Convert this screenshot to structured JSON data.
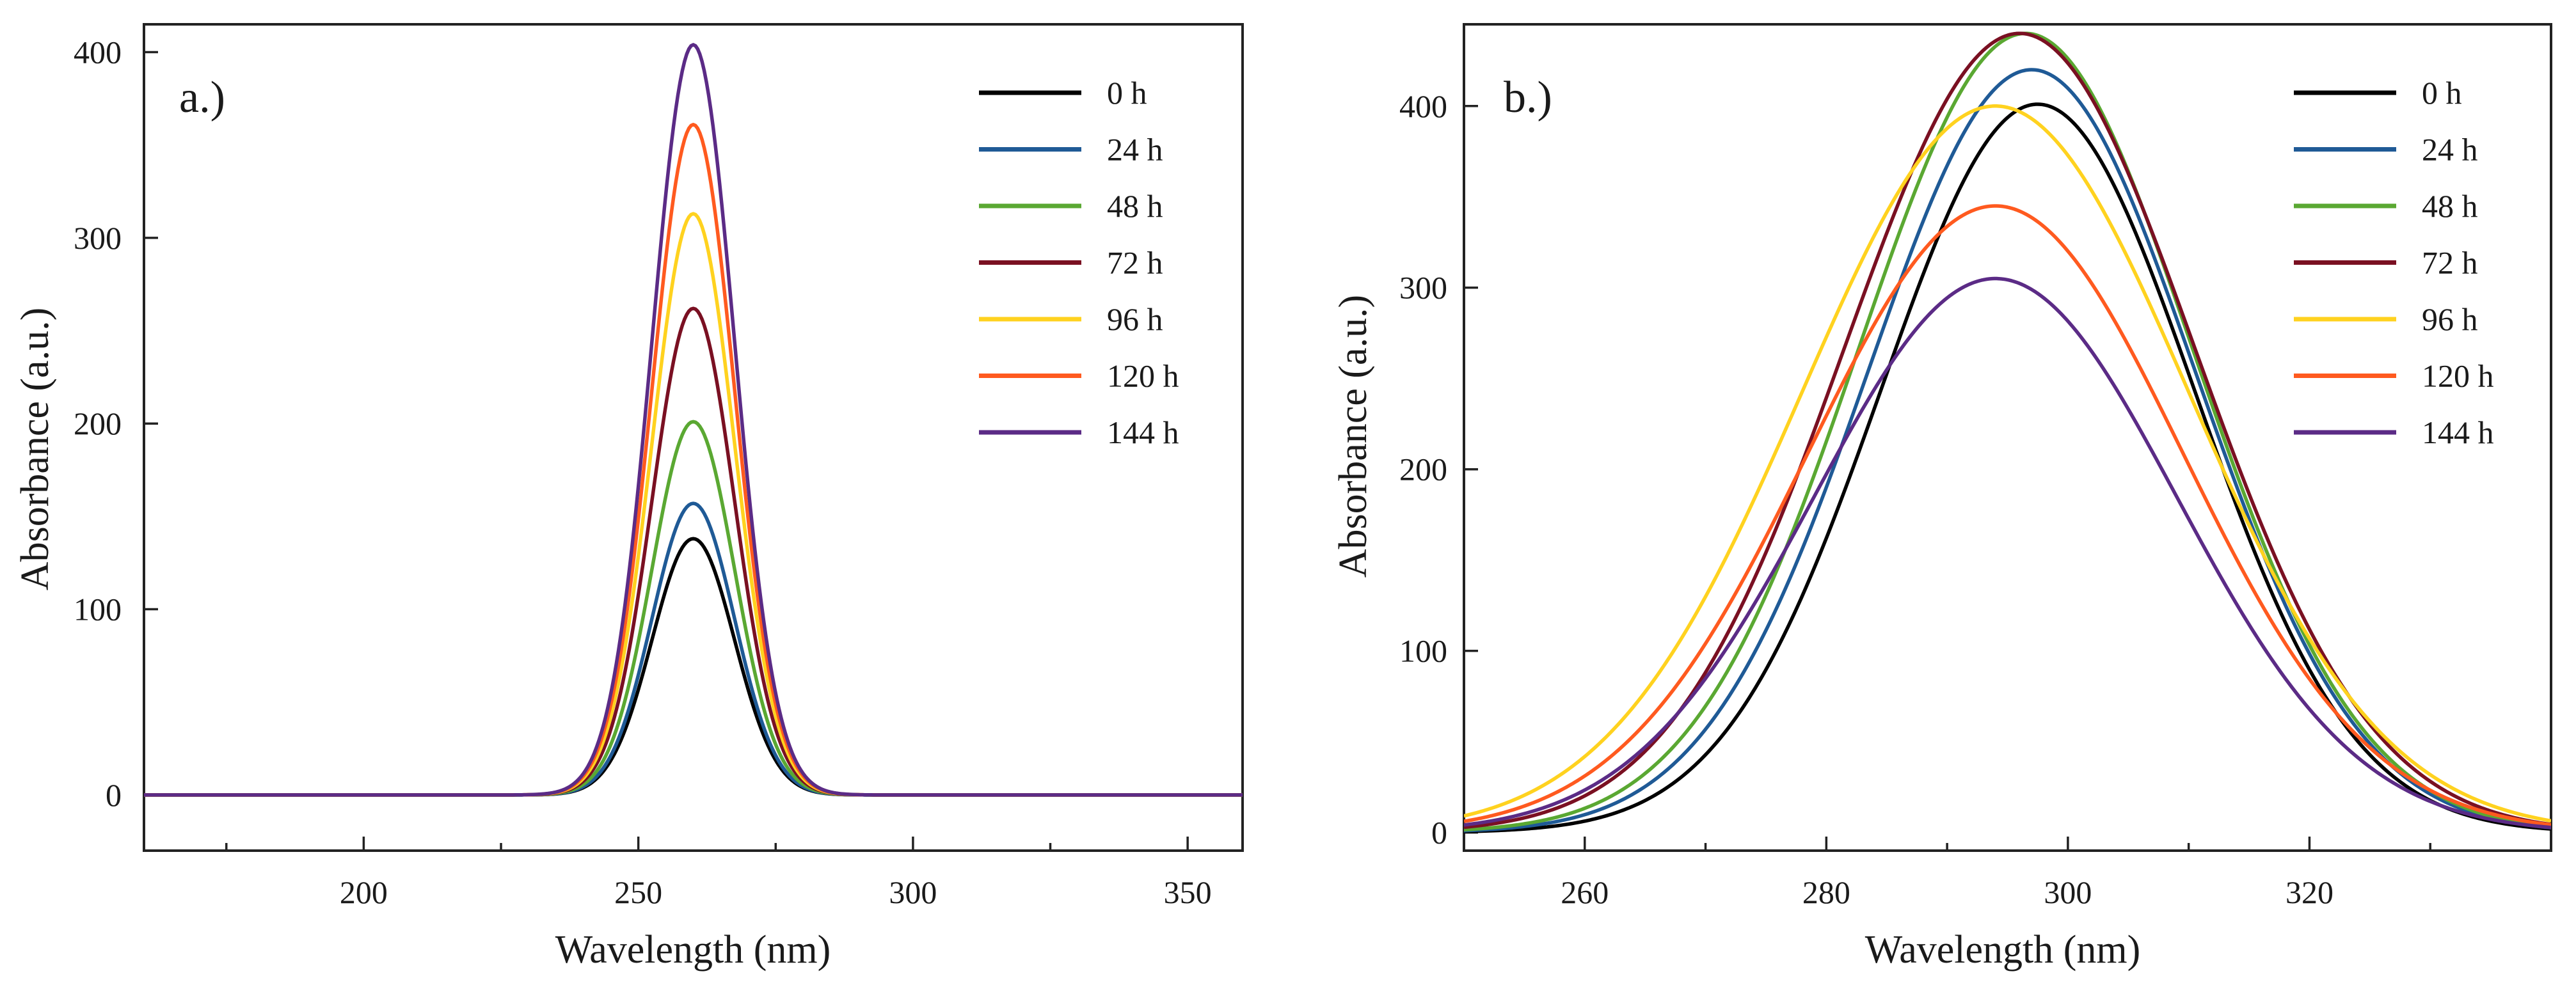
{
  "chart_data": [
    {
      "type": "line",
      "panel_label": "a.)",
      "xlabel": "Wavelength (nm)",
      "ylabel": "Absorbance (a.u.)",
      "xlim": [
        160,
        360
      ],
      "ylim": [
        -30,
        415
      ],
      "xticks": [
        200,
        250,
        300,
        350
      ],
      "xtick_labels": [
        "200",
        "250",
        "300",
        "350"
      ],
      "yticks": [
        0,
        100,
        200,
        300,
        400
      ],
      "ytick_labels": [
        "0",
        "100",
        "200",
        "300",
        "400"
      ],
      "legend_position": "top-right",
      "curve_shape": "gaussian",
      "series": [
        {
          "name": "0 h",
          "color": "#000000",
          "peak_x": 260,
          "peak_y": 138,
          "sigma": 7.5
        },
        {
          "name": "24 h",
          "color": "#1f5a96",
          "peak_x": 260,
          "peak_y": 157,
          "sigma": 7.5
        },
        {
          "name": "48 h",
          "color": "#5aa832",
          "peak_x": 260,
          "peak_y": 201,
          "sigma": 7.5
        },
        {
          "name": "72 h",
          "color": "#7a1022",
          "peak_x": 260,
          "peak_y": 262,
          "sigma": 7.5
        },
        {
          "name": "96 h",
          "color": "#ffd21f",
          "peak_x": 260,
          "peak_y": 313,
          "sigma": 7.5
        },
        {
          "name": "120 h",
          "color": "#ff5a1f",
          "peak_x": 260,
          "peak_y": 361,
          "sigma": 7.5
        },
        {
          "name": "144 h",
          "color": "#5b2b86",
          "peak_x": 260,
          "peak_y": 404,
          "sigma": 7.5
        }
      ]
    },
    {
      "type": "line",
      "panel_label": "b.)",
      "xlabel": "Wavelength (nm)",
      "ylabel": "Absorbance (a.u.)",
      "xlim": [
        250,
        340
      ],
      "ylim": [
        -10,
        445
      ],
      "xticks": [
        260,
        280,
        300,
        320
      ],
      "xtick_labels": [
        "260",
        "280",
        "300",
        "320"
      ],
      "yticks": [
        0,
        100,
        200,
        300,
        400
      ],
      "ytick_labels": [
        "0",
        "100",
        "200",
        "300",
        "400"
      ],
      "legend_position": "top-right",
      "curve_shape": "gaussian",
      "series": [
        {
          "name": "0 h",
          "color": "#000000",
          "peak_x": 297.5,
          "peak_y": 401,
          "sigma": 13.0
        },
        {
          "name": "24 h",
          "color": "#1f5a96",
          "peak_x": 297,
          "peak_y": 420,
          "sigma": 13.5
        },
        {
          "name": "48 h",
          "color": "#5aa832",
          "peak_x": 296.5,
          "peak_y": 440,
          "sigma": 13.8
        },
        {
          "name": "72 h",
          "color": "#7a1022",
          "peak_x": 296,
          "peak_y": 440,
          "sigma": 14.5
        },
        {
          "name": "96 h",
          "color": "#ffd21f",
          "peak_x": 294,
          "peak_y": 400,
          "sigma": 16.0
        },
        {
          "name": "120 h",
          "color": "#ff5a1f",
          "peak_x": 294,
          "peak_y": 345,
          "sigma": 15.5
        },
        {
          "name": "144 h",
          "color": "#5b2b86",
          "peak_x": 294,
          "peak_y": 305,
          "sigma": 15.0
        }
      ]
    }
  ]
}
